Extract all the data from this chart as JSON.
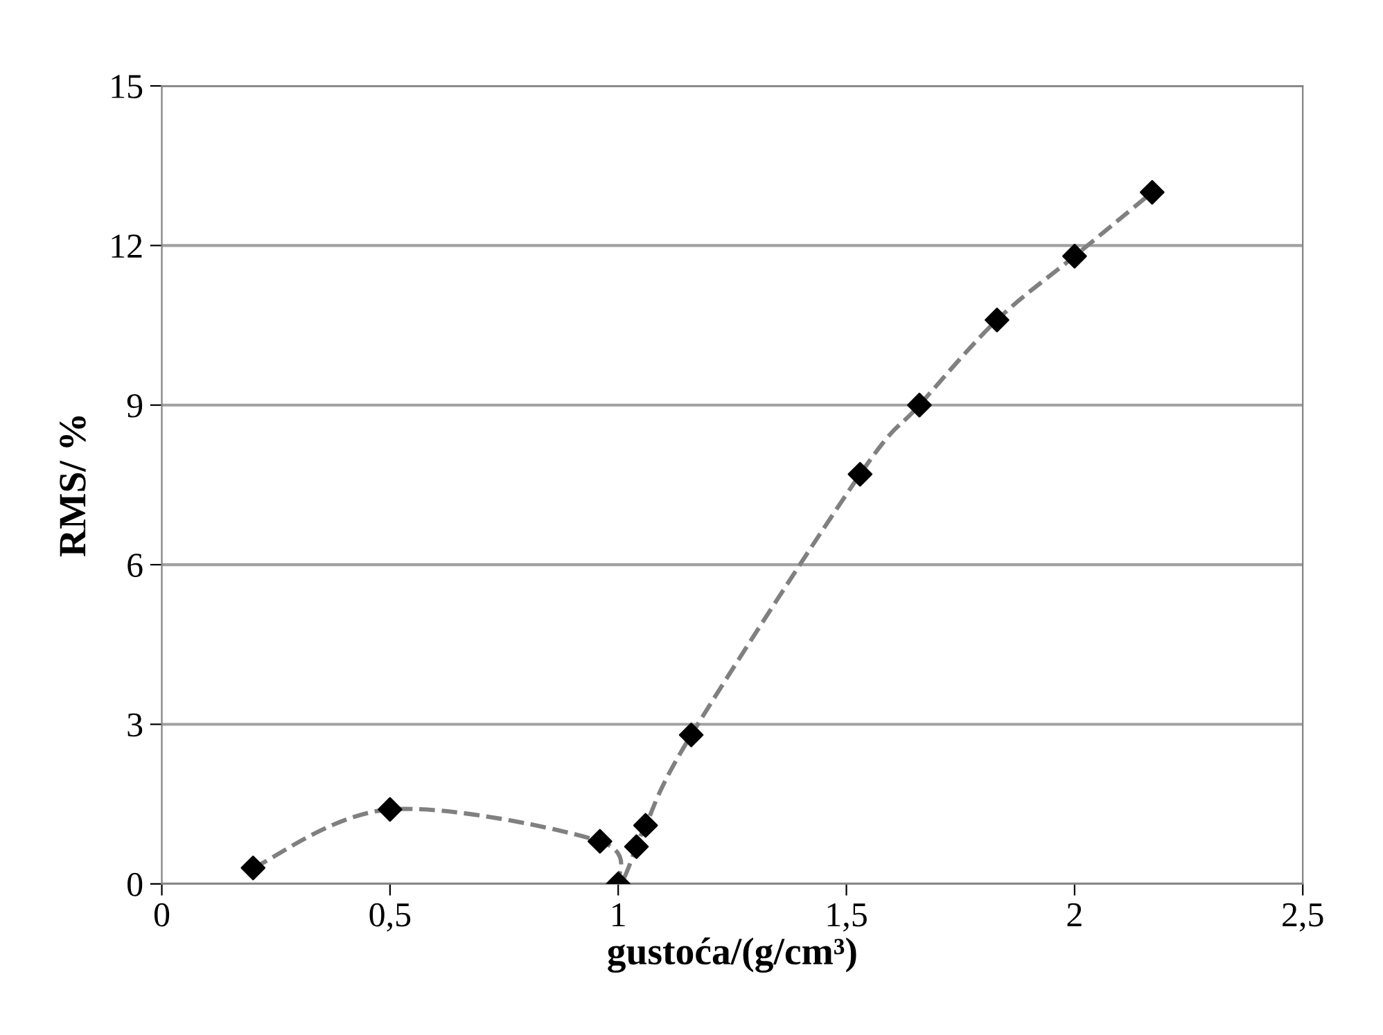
{
  "chart_data": {
    "type": "scatter",
    "xlabel": "gustoća/(g/cm³)",
    "ylabel": "RMS/ %",
    "x": [
      0.2,
      0.5,
      0.96,
      1.0,
      1.04,
      1.06,
      1.16,
      1.53,
      1.66,
      1.83,
      2.0,
      2.17
    ],
    "series": [
      {
        "type": "line",
        "color": "#808080",
        "marker": "none",
        "values": [
          0.3,
          1.4,
          0.8,
          0.0,
          0.7,
          1.1,
          2.8,
          7.7,
          9.0,
          10.6,
          11.8,
          13.0
        ]
      },
      {
        "color": "#000000",
        "values": [
          0.3,
          1.4,
          0.8,
          0.0,
          0.7,
          1.1,
          2.8,
          7.7,
          9.0,
          10.6,
          11.8,
          13.0
        ]
      }
    ],
    "xlim": [
      0,
      2.5
    ],
    "xticks": [
      0,
      {
        "value": 0.5,
        "label": "0,5"
      },
      1,
      {
        "value": 1.5,
        "label": "1,5"
      },
      2,
      {
        "value": 2.5,
        "label": "2,5"
      }
    ],
    "ylim": [
      0,
      15
    ],
    "yticks": [
      0,
      3,
      6,
      9,
      12,
      15
    ],
    "grid": "y",
    "marker": "diamond",
    "line_style": "dashed",
    "legend": false
  }
}
